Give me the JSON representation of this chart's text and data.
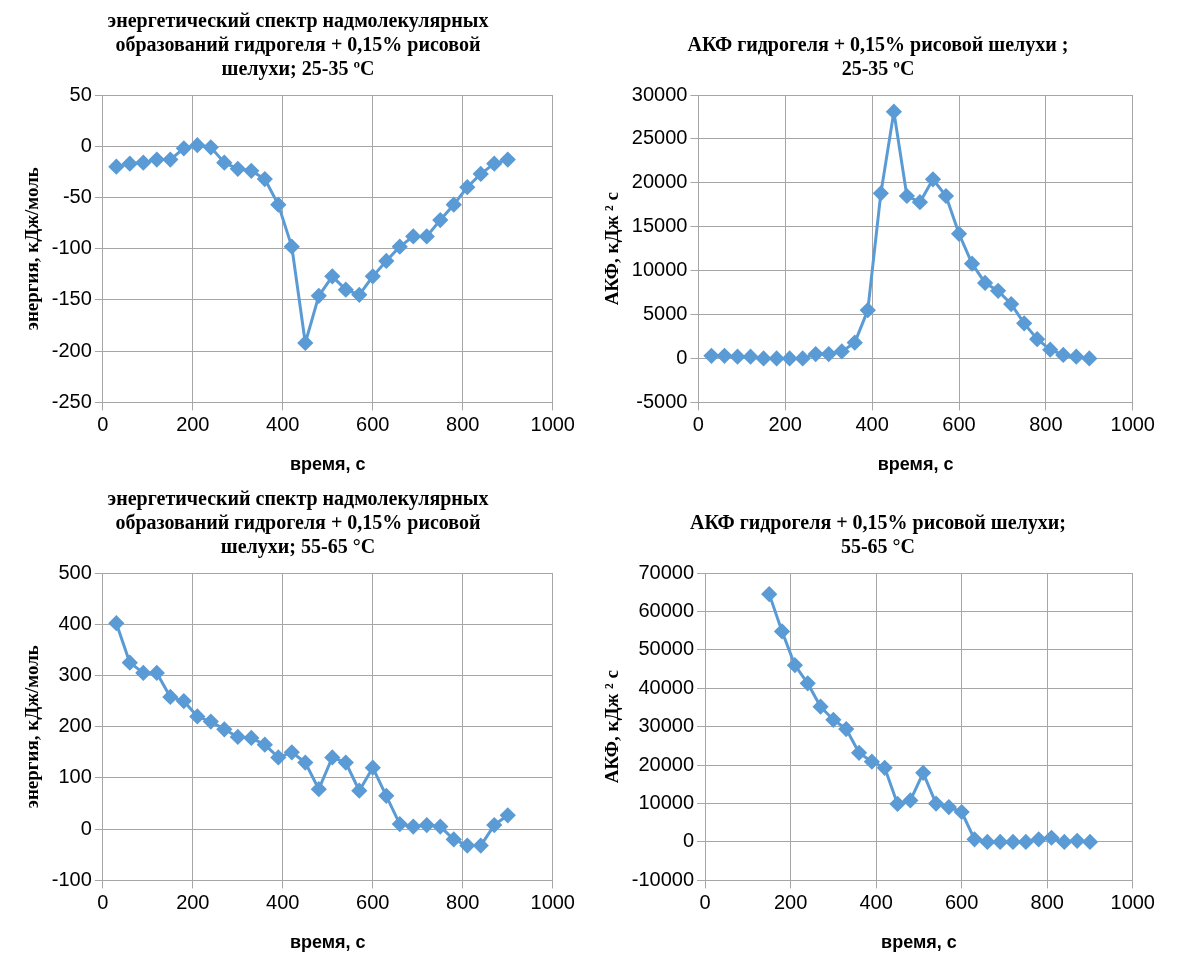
{
  "chart_data": [
    {
      "type": "line",
      "title": "энергетический спектр надмолекулярных образований гидрогеля + 0,15% рисовой шелухи; 25-35 ºC",
      "xlabel": "время, с",
      "ylabel": "энергия, кДж/моль",
      "x": [
        30,
        60,
        90,
        120,
        150,
        180,
        210,
        240,
        270,
        300,
        330,
        360,
        390,
        420,
        450,
        480,
        510,
        540,
        570,
        600,
        630,
        660,
        690,
        720,
        750,
        780,
        810,
        840,
        870,
        900
      ],
      "series": [
        {
          "color": "#5b9bd5",
          "values": [
            -20,
            -17,
            -16,
            -13,
            -13,
            -2,
            1,
            -1,
            -16,
            -22,
            -24,
            -32,
            -57,
            -98,
            -192,
            -146,
            -127,
            -140,
            -145,
            -127,
            -112,
            -98,
            -88,
            -88,
            -72,
            -57,
            -40,
            -27,
            -17,
            -13
          ]
        }
      ],
      "xlim": [
        0,
        1000
      ],
      "xticks": [
        0,
        200,
        400,
        600,
        800,
        1000
      ],
      "ylim": [
        -250,
        50
      ],
      "yticks": [
        -250,
        -200,
        -150,
        -100,
        -50,
        0,
        50
      ],
      "grid": true,
      "legend": false,
      "marker": "diamond"
    },
    {
      "type": "line",
      "title": "АКФ гидрогеля + 0,15% рисовой шелухи ; 25-35 ºC",
      "xlabel": "время, с",
      "ylabel": "АКФ, кДж ² с",
      "x": [
        30,
        60,
        90,
        120,
        150,
        180,
        210,
        240,
        270,
        300,
        330,
        360,
        390,
        420,
        450,
        480,
        510,
        540,
        570,
        600,
        630,
        660,
        690,
        720,
        750,
        780,
        810,
        840,
        870,
        900
      ],
      "series": [
        {
          "color": "#5b9bd5",
          "values": [
            300,
            300,
            200,
            200,
            0,
            0,
            0,
            0,
            500,
            500,
            800,
            1800,
            5500,
            18800,
            28100,
            18500,
            17800,
            20400,
            18500,
            14200,
            10800,
            8600,
            7700,
            6200,
            4000,
            2200,
            1000,
            400,
            200,
            0
          ]
        }
      ],
      "xlim": [
        0,
        1000
      ],
      "xticks": [
        0,
        200,
        400,
        600,
        800,
        1000
      ],
      "ylim": [
        -5000,
        30000
      ],
      "yticks": [
        -5000,
        0,
        5000,
        10000,
        15000,
        20000,
        25000,
        30000
      ],
      "grid": true,
      "legend": false,
      "marker": "diamond"
    },
    {
      "type": "line",
      "title": "энергетический спектр надмолекулярных образований гидрогеля + 0,15% рисовой шелухи; 55-65 °C",
      "xlabel": "время, с",
      "ylabel": "энергия, кДж/моль",
      "x": [
        30,
        60,
        90,
        120,
        150,
        180,
        210,
        240,
        270,
        300,
        330,
        360,
        390,
        420,
        450,
        480,
        510,
        540,
        570,
        600,
        630,
        660,
        690,
        720,
        750,
        780,
        810,
        840,
        870,
        900
      ],
      "series": [
        {
          "color": "#5b9bd5",
          "values": [
            402,
            325,
            305,
            305,
            258,
            250,
            220,
            210,
            195,
            180,
            178,
            165,
            140,
            150,
            130,
            78,
            140,
            130,
            75,
            120,
            65,
            10,
            5,
            8,
            5,
            -20,
            -32,
            -32,
            8,
            27
          ]
        }
      ],
      "xlim": [
        0,
        1000
      ],
      "xticks": [
        0,
        200,
        400,
        600,
        800,
        1000
      ],
      "ylim": [
        -100,
        500
      ],
      "yticks": [
        -100,
        0,
        100,
        200,
        300,
        400,
        500
      ],
      "grid": true,
      "legend": false,
      "marker": "diamond"
    },
    {
      "type": "line",
      "title": "АКФ гидрогеля + 0,15% рисовой шелухи; 55-65 °C",
      "xlabel": "время, с",
      "ylabel": "АКФ, кДж ² с",
      "x": [
        150,
        180,
        210,
        240,
        270,
        300,
        330,
        360,
        390,
        420,
        450,
        480,
        510,
        540,
        570,
        600,
        630,
        660,
        690,
        720,
        750,
        780,
        810,
        840,
        870,
        900
      ],
      "series": [
        {
          "color": "#5b9bd5",
          "values": [
            64500,
            54800,
            46000,
            41300,
            35200,
            31800,
            29400,
            23200,
            20900,
            19300,
            9900,
            10800,
            18000,
            10000,
            9100,
            7800,
            700,
            0,
            0,
            0,
            0,
            700,
            1100,
            0,
            300,
            0
          ]
        }
      ],
      "xlim": [
        0,
        1000
      ],
      "xticks": [
        0,
        200,
        400,
        600,
        800,
        1000
      ],
      "ylim": [
        -10000,
        70000
      ],
      "yticks": [
        -10000,
        0,
        10000,
        20000,
        30000,
        40000,
        50000,
        60000,
        70000
      ],
      "grid": true,
      "legend": false,
      "marker": "diamond"
    }
  ]
}
